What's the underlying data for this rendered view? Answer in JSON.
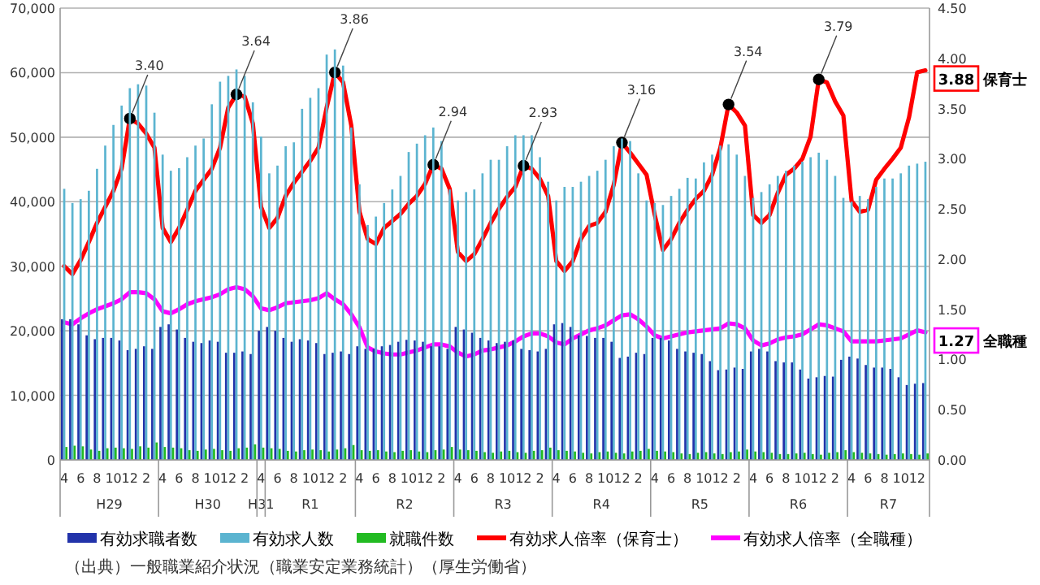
{
  "chart_data": {
    "type": "bar",
    "categories": [
      "4",
      null,
      "6",
      null,
      "8",
      null,
      "10",
      null,
      "12",
      null,
      "2",
      null,
      "4",
      null,
      "6",
      null,
      "8",
      null,
      "10",
      null,
      "12",
      null,
      "2",
      null,
      "4",
      null,
      "6",
      null,
      "8",
      null,
      "10",
      null,
      "12",
      null,
      "2",
      null,
      "4",
      null,
      "6",
      null,
      "8",
      null,
      "10",
      null,
      "12",
      null,
      "2",
      null,
      "4",
      null,
      "6",
      null,
      "8",
      null,
      "10",
      null,
      "12",
      null,
      "2",
      null,
      "4",
      null,
      "6",
      null,
      "8",
      null,
      "10",
      null,
      "12",
      null,
      "2",
      null,
      "4",
      null,
      "6",
      null,
      "8",
      null,
      "10",
      null,
      "12",
      null,
      "2",
      null,
      "4",
      null,
      "6",
      null,
      "8",
      null,
      "10",
      null,
      "12",
      null,
      "2",
      null,
      "4",
      null,
      "6",
      null,
      "8",
      null,
      "10",
      null,
      "12",
      null
    ],
    "series": [
      {
        "name": "有効求職者数",
        "color": "#2233aa",
        "values": [
          21800,
          21800,
          21000,
          19300,
          18700,
          18900,
          18900,
          18500,
          17000,
          17200,
          17600,
          17200,
          20600,
          21000,
          20200,
          18900,
          18300,
          18100,
          18500,
          18300,
          16600,
          16600,
          16800,
          16400,
          20000,
          20600,
          20000,
          18900,
          18300,
          18700,
          18500,
          18100,
          16400,
          16600,
          16800,
          16400,
          17600,
          17200,
          17200,
          17600,
          17800,
          18300,
          18600,
          18500,
          18300,
          17600,
          17600,
          17200,
          20600,
          20200,
          19700,
          18900,
          18500,
          18100,
          18300,
          18500,
          17200,
          17000,
          16800,
          17200,
          21000,
          21200,
          20600,
          19300,
          19200,
          18900,
          18900,
          18300,
          15800,
          16000,
          16600,
          16400,
          18900,
          18900,
          18500,
          17200,
          16800,
          16600,
          16400,
          15300,
          13900,
          14000,
          14300,
          14100,
          16800,
          17200,
          16800,
          15300,
          15100,
          15100,
          14000,
          12600,
          12800,
          13000,
          12900,
          15500,
          16000,
          15700,
          14700,
          14300,
          14300,
          14100,
          12800,
          11600,
          11800,
          11900
        ]
      },
      {
        "name": "有効求人数",
        "color": "#5bb4d0",
        "values": [
          42000,
          39800,
          40400,
          41700,
          45100,
          48700,
          51900,
          54900,
          57600,
          58200,
          58000,
          53800,
          47300,
          44800,
          45200,
          46900,
          48700,
          49800,
          55100,
          58600,
          59500,
          60500,
          59500,
          55400,
          50100,
          44400,
          45600,
          48600,
          49200,
          54400,
          56100,
          57600,
          62800,
          63600,
          61100,
          51500,
          42700,
          36400,
          37700,
          39800,
          41900,
          44000,
          47700,
          49000,
          50300,
          51500,
          49400,
          41900,
          40200,
          41500,
          41900,
          44400,
          46500,
          46500,
          48600,
          50300,
          50300,
          50300,
          46900,
          43100,
          40200,
          42300,
          42300,
          43100,
          44000,
          44800,
          46500,
          48600,
          49800,
          49400,
          44400,
          40200,
          39800,
          39500,
          40900,
          42000,
          43700,
          43600,
          46100,
          47300,
          48700,
          48900,
          47300,
          44000,
          40600,
          41500,
          42700,
          44000,
          44800,
          45600,
          46200,
          46900,
          47600,
          46500,
          44000,
          40600,
          40000,
          40900,
          40400,
          42300,
          43600,
          43600,
          44400,
          45600,
          45900,
          46200
        ]
      },
      {
        "name": "就職件数",
        "color": "#22bb22",
        "values": [
          2000,
          2200,
          2100,
          1600,
          1400,
          1800,
          1900,
          1800,
          1700,
          2100,
          1900,
          2700,
          2000,
          1900,
          1800,
          1500,
          1400,
          1600,
          1700,
          1500,
          1400,
          1800,
          1900,
          2400,
          1900,
          1800,
          1700,
          1400,
          1300,
          1500,
          1600,
          1500,
          1300,
          1600,
          1800,
          2300,
          1500,
          1400,
          1500,
          1300,
          1200,
          1400,
          1500,
          1300,
          1200,
          1500,
          1600,
          2000,
          1600,
          1500,
          1400,
          1200,
          1100,
          1300,
          1400,
          1200,
          1100,
          1400,
          1500,
          1900,
          1500,
          1400,
          1300,
          1100,
          1000,
          1200,
          1300,
          1100,
          1000,
          1300,
          1400,
          1700,
          1400,
          1300,
          1200,
          1000,
          900,
          1100,
          1200,
          1000,
          900,
          1200,
          1300,
          1600,
          1300,
          1200,
          1100,
          900,
          900,
          1000,
          1100,
          900,
          800,
          1100,
          1200,
          1500,
          1200,
          1100,
          1000,
          900,
          800,
          900,
          1000,
          900,
          800,
          1000
        ]
      },
      {
        "name": "有効求人倍率（保育士）",
        "type": "line",
        "axis": "y2",
        "color": "#ff0000",
        "values": [
          1.93,
          1.85,
          1.99,
          2.17,
          2.36,
          2.52,
          2.68,
          2.9,
          3.4,
          3.35,
          3.25,
          3.11,
          2.31,
          2.17,
          2.31,
          2.49,
          2.68,
          2.79,
          2.9,
          3.11,
          3.51,
          3.64,
          3.62,
          3.35,
          2.52,
          2.31,
          2.41,
          2.63,
          2.76,
          2.87,
          2.98,
          3.11,
          3.51,
          3.86,
          3.76,
          3.33,
          2.47,
          2.2,
          2.15,
          2.31,
          2.38,
          2.45,
          2.55,
          2.63,
          2.75,
          2.94,
          2.9,
          2.7,
          2.07,
          1.98,
          2.05,
          2.2,
          2.36,
          2.5,
          2.62,
          2.72,
          2.93,
          2.9,
          2.8,
          2.63,
          1.98,
          1.88,
          1.98,
          2.2,
          2.33,
          2.36,
          2.47,
          2.74,
          3.16,
          3.06,
          2.95,
          2.84,
          2.44,
          2.09,
          2.2,
          2.36,
          2.49,
          2.6,
          2.68,
          2.84,
          3.11,
          3.54,
          3.46,
          3.33,
          2.44,
          2.36,
          2.44,
          2.66,
          2.84,
          2.9,
          3.0,
          3.22,
          3.79,
          3.76,
          3.57,
          3.43,
          2.58,
          2.47,
          2.49,
          2.79,
          2.9,
          3.0,
          3.11,
          3.41,
          3.86,
          3.88
        ],
        "value_labels": [
          null,
          null,
          null,
          null,
          null,
          null,
          null,
          null,
          "3.40",
          null,
          null,
          null,
          null,
          null,
          null,
          null,
          null,
          null,
          null,
          null,
          null,
          "3.64",
          null,
          null,
          null,
          null,
          null,
          null,
          null,
          null,
          null,
          null,
          null,
          "3.86",
          null,
          null,
          null,
          null,
          null,
          null,
          null,
          null,
          null,
          null,
          null,
          "2.94",
          null,
          null,
          null,
          null,
          null,
          null,
          null,
          null,
          null,
          null,
          "2.93",
          null,
          null,
          null,
          null,
          null,
          null,
          null,
          null,
          null,
          null,
          null,
          "3.16",
          null,
          null,
          null,
          null,
          null,
          null,
          null,
          null,
          null,
          null,
          null,
          null,
          "3.54",
          null,
          null,
          null,
          null,
          null,
          null,
          null,
          null,
          null,
          null,
          "3.79",
          null,
          null,
          null,
          null,
          null,
          null,
          null,
          null,
          null,
          null,
          null,
          null,
          "3.88"
        ]
      },
      {
        "name": "有効求人倍率（全職種）",
        "type": "line",
        "axis": "y2",
        "color": "#ff00ff",
        "values": [
          1.37,
          1.35,
          1.41,
          1.46,
          1.5,
          1.53,
          1.56,
          1.6,
          1.67,
          1.67,
          1.66,
          1.6,
          1.48,
          1.46,
          1.5,
          1.55,
          1.58,
          1.6,
          1.62,
          1.65,
          1.7,
          1.72,
          1.7,
          1.63,
          1.51,
          1.49,
          1.52,
          1.56,
          1.57,
          1.58,
          1.59,
          1.61,
          1.66,
          1.6,
          1.55,
          1.45,
          1.32,
          1.12,
          1.08,
          1.06,
          1.05,
          1.05,
          1.07,
          1.09,
          1.12,
          1.15,
          1.15,
          1.13,
          1.07,
          1.03,
          1.05,
          1.09,
          1.1,
          1.12,
          1.14,
          1.18,
          1.23,
          1.26,
          1.26,
          1.23,
          1.17,
          1.15,
          1.21,
          1.25,
          1.29,
          1.31,
          1.34,
          1.39,
          1.44,
          1.45,
          1.4,
          1.33,
          1.24,
          1.21,
          1.23,
          1.25,
          1.27,
          1.28,
          1.29,
          1.3,
          1.31,
          1.36,
          1.35,
          1.31,
          1.19,
          1.14,
          1.16,
          1.2,
          1.22,
          1.23,
          1.25,
          1.3,
          1.35,
          1.34,
          1.31,
          1.28,
          1.18,
          1.18,
          1.18,
          1.18,
          1.19,
          1.2,
          1.21,
          1.25,
          1.29,
          1.27
        ],
        "value_labels": [
          null,
          null,
          null,
          null,
          null,
          null,
          null,
          null,
          null,
          null,
          null,
          null,
          null,
          null,
          null,
          null,
          null,
          null,
          null,
          null,
          null,
          null,
          null,
          null,
          null,
          null,
          null,
          null,
          null,
          null,
          null,
          null,
          null,
          null,
          null,
          null,
          null,
          null,
          null,
          null,
          null,
          null,
          null,
          null,
          null,
          null,
          null,
          null,
          null,
          null,
          null,
          null,
          null,
          null,
          null,
          null,
          null,
          null,
          null,
          null,
          null,
          null,
          null,
          null,
          null,
          null,
          null,
          null,
          null,
          null,
          null,
          null,
          null,
          null,
          null,
          null,
          null,
          null,
          null,
          null,
          null,
          null,
          null,
          null,
          null,
          null,
          null,
          null,
          null,
          null,
          null,
          null,
          null,
          null,
          null,
          null,
          null,
          null,
          null,
          null,
          null,
          null,
          null,
          null,
          null,
          "1.27"
        ]
      }
    ],
    "ylim": [
      0,
      70000
    ],
    "yticks": [
      0,
      {
        "value": 10000,
        "label": "10,000"
      },
      {
        "value": 20000,
        "label": "20,000"
      },
      {
        "value": 30000,
        "label": "30,000"
      },
      {
        "value": 40000,
        "label": "40,000"
      },
      {
        "value": 50000,
        "label": "50,000"
      },
      {
        "value": 60000,
        "label": "60,000"
      },
      {
        "value": 70000,
        "label": "70,000"
      }
    ],
    "y2lim": [
      0,
      4.5
    ],
    "y2ticks": [
      {
        "value": 0,
        "label": "0.00"
      },
      {
        "value": 0.5,
        "label": "0.50"
      },
      {
        "value": 1,
        "label": "1.00"
      },
      {
        "value": 1.5,
        "label": "1.50"
      },
      {
        "value": 2,
        "label": "2.00"
      },
      {
        "value": 2.5,
        "label": "2.50"
      },
      {
        "value": 3,
        "label": "3.00"
      },
      {
        "value": 3.5,
        "label": "3.50"
      },
      {
        "value": 4,
        "label": "4.00"
      },
      {
        "value": 4.5,
        "label": "4.50"
      }
    ],
    "grid": "y",
    "legend": "bottom",
    "annotations": [
      "H29",
      "H30",
      "H31",
      "R1",
      "R2",
      "R3",
      "R4",
      "R5",
      "R6",
      "R7",
      "（出典）一般職業紹介状況（職業安定業務統計）（厚生労働省）",
      "保育士",
      "全職種"
    ]
  }
}
